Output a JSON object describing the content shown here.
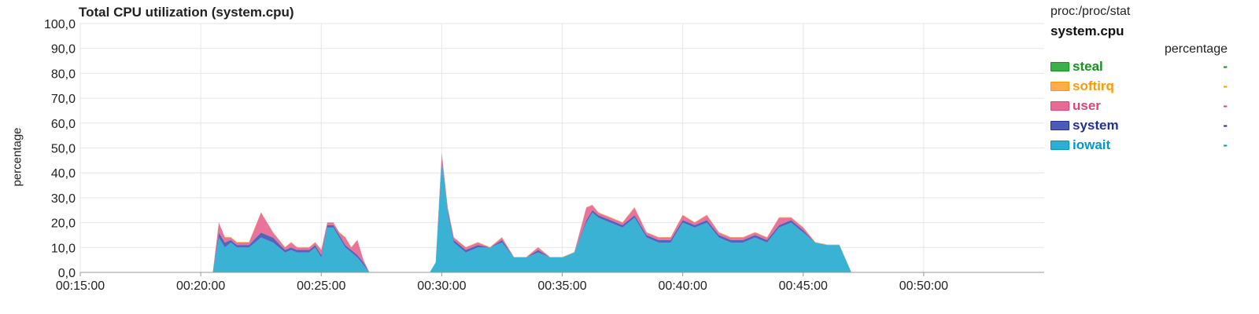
{
  "chart_data": {
    "type": "area",
    "stacked": true,
    "title": "Total CPU utilization (system.cpu)",
    "ylabel": "percentage",
    "ylim": [
      0,
      100
    ],
    "yticks": [
      "0,0",
      "10,0",
      "20,0",
      "30,0",
      "40,0",
      "50,0",
      "60,0",
      "70,0",
      "80,0",
      "90,0",
      "100,0"
    ],
    "xlim": [
      "00:15:00",
      "00:55:00"
    ],
    "xticks": [
      "00:15:00",
      "00:20:00",
      "00:25:00",
      "00:30:00",
      "00:35:00",
      "00:40:00",
      "00:45:00",
      "00:50:00"
    ],
    "grid": true,
    "legend_position": "right",
    "x": [
      "00:20:30",
      "00:20:45",
      "00:21:00",
      "00:21:15",
      "00:21:30",
      "00:21:45",
      "00:22:00",
      "00:22:30",
      "00:23:00",
      "00:23:30",
      "00:23:45",
      "00:24:00",
      "00:24:30",
      "00:24:45",
      "00:25:00",
      "00:25:15",
      "00:25:30",
      "00:25:45",
      "00:26:00",
      "00:26:15",
      "00:26:30",
      "00:26:45",
      "00:27:00",
      "00:29:30",
      "00:29:45",
      "00:30:00",
      "00:30:15",
      "00:30:30",
      "00:31:00",
      "00:31:30",
      "00:32:00",
      "00:32:30",
      "00:33:00",
      "00:33:30",
      "00:34:00",
      "00:34:30",
      "00:35:00",
      "00:35:30",
      "00:36:00",
      "00:36:15",
      "00:36:30",
      "00:37:00",
      "00:37:30",
      "00:38:00",
      "00:38:30",
      "00:39:00",
      "00:39:30",
      "00:40:00",
      "00:40:30",
      "00:41:00",
      "00:41:30",
      "00:42:00",
      "00:42:30",
      "00:43:00",
      "00:43:30",
      "00:44:00",
      "00:44:30",
      "00:45:00",
      "00:45:30",
      "00:46:00",
      "00:46:30",
      "00:47:00"
    ],
    "series": [
      {
        "name": "iowait",
        "values": [
          0,
          14,
          10,
          12,
          10,
          10,
          10,
          14,
          12,
          8,
          9,
          8,
          8,
          10,
          6,
          18,
          18,
          14,
          10,
          8,
          6,
          3,
          0,
          0,
          4,
          45,
          24,
          12,
          8,
          10,
          10,
          12,
          6,
          6,
          8,
          6,
          6,
          8,
          20,
          24,
          22,
          20,
          18,
          22,
          14,
          12,
          12,
          20,
          18,
          20,
          14,
          12,
          12,
          14,
          12,
          18,
          20,
          16,
          12,
          11,
          11,
          0
        ]
      },
      {
        "name": "system",
        "values": [
          0,
          2,
          2,
          1,
          1,
          1,
          1,
          2,
          2,
          1,
          1,
          1,
          1,
          1,
          1,
          1,
          1,
          1,
          1,
          1,
          1,
          1,
          0,
          0,
          0,
          1,
          1,
          1,
          1,
          1,
          0,
          1,
          0,
          0,
          1,
          0,
          0,
          0,
          1,
          1,
          1,
          1,
          1,
          1,
          1,
          1,
          1,
          1,
          1,
          1,
          1,
          1,
          1,
          1,
          1,
          1,
          1,
          1,
          0,
          0,
          0,
          0
        ]
      },
      {
        "name": "user",
        "values": [
          0,
          4,
          2,
          1,
          1,
          1,
          1,
          8,
          2,
          1,
          2,
          1,
          1,
          1,
          2,
          1,
          1,
          1,
          3,
          1,
          6,
          1,
          0,
          0,
          0,
          2,
          1,
          1,
          1,
          1,
          0,
          1,
          0,
          0,
          1,
          0,
          0,
          0,
          5,
          2,
          1,
          1,
          1,
          3,
          1,
          1,
          1,
          2,
          1,
          2,
          1,
          1,
          1,
          1,
          1,
          3,
          1,
          1,
          0,
          0,
          0,
          0
        ]
      },
      {
        "name": "softirq",
        "values": [
          0,
          0.2,
          0.2,
          0.2,
          0.2,
          0.2,
          0.2,
          0.2,
          0.2,
          0.2,
          0.2,
          0.2,
          0.2,
          0.2,
          0.2,
          0.2,
          0.2,
          0.2,
          0.2,
          0.2,
          0.2,
          0.2,
          0,
          0,
          0,
          0.2,
          0.2,
          0.2,
          0.2,
          0.2,
          0.2,
          0.2,
          0.2,
          0.2,
          0.2,
          0.2,
          0.2,
          0.2,
          0.2,
          0.2,
          0.2,
          0.2,
          0.2,
          0.2,
          0.2,
          0.2,
          0.2,
          0.2,
          0.2,
          0.2,
          0.2,
          0.2,
          0.2,
          0.2,
          0.2,
          0.2,
          0.2,
          0.2,
          0.2,
          0.2,
          0.2,
          0
        ]
      },
      {
        "name": "steal",
        "values": [
          0,
          0,
          0,
          0,
          0,
          0,
          0,
          0,
          0,
          0,
          0,
          0,
          0,
          0,
          0,
          0,
          0,
          0,
          0,
          0,
          0,
          0,
          0,
          0,
          0,
          0,
          0,
          0,
          0,
          0,
          0,
          0,
          0,
          0,
          0,
          0,
          0,
          0,
          0,
          0,
          0,
          0,
          0,
          0,
          0,
          0,
          0,
          0,
          0,
          0,
          0,
          0,
          0,
          0,
          0,
          0,
          0,
          0,
          0,
          0,
          0,
          0
        ]
      }
    ]
  },
  "legend": {
    "source": "proc:/proc/stat",
    "context": "system.cpu",
    "units": "percentage",
    "items": [
      {
        "name": "steal",
        "value": "-",
        "color": "#109618"
      },
      {
        "name": "softirq",
        "value": "-",
        "color": "#ff9900"
      },
      {
        "name": "user",
        "value": "-",
        "color": "#dd4477"
      },
      {
        "name": "system",
        "value": "-",
        "color": "#22319a"
      },
      {
        "name": "iowait",
        "value": "-",
        "color": "#0099c6"
      }
    ]
  },
  "colors": {
    "steal": "#3cae4a",
    "softirq": "#ffac4a",
    "user": "#e86b95",
    "system": "#4a5cb8",
    "iowait": "#2eaed2",
    "grid": "#e6e6e6"
  }
}
